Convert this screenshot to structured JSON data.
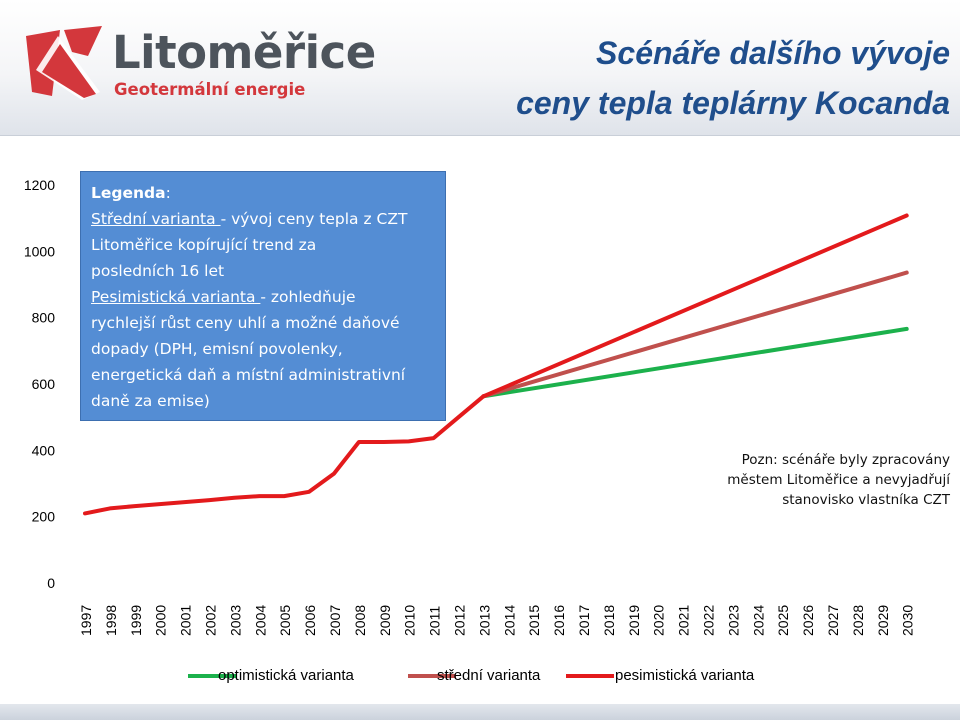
{
  "header": {
    "logo_name": "Litoměřice",
    "logo_tagline": "Geotermální energie",
    "title_line1": "Scénáře dalšího vývoje",
    "title_line2": "ceny tepla teplárny Kocanda"
  },
  "legend_box": {
    "heading": "Legenda",
    "heading_colon": ":",
    "middle_head": "Střední varianta ",
    "middle_text_1": "- vývoj ceny tepla z CZT",
    "middle_text_2": "Litoměřice kopírující trend za",
    "middle_text_3": "posledních 16 let",
    "pess_head": "Pesimistická varianta ",
    "pess_text_1": "- zohledňuje",
    "pess_text_2": "rychlejší růst ceny uhlí a možné daňové",
    "pess_text_3": "dopady (DPH, emisní povolenky,",
    "pess_text_4": "energetická daň a místní administrativní",
    "pess_text_5": "daně za emise)"
  },
  "note": {
    "line1": "Pozn: scénáře byly zpracovány",
    "line2": "městem Litoměřice a nevyjadřují",
    "line3": "stanovisko  vlastníka CZT"
  },
  "bottom_legend": {
    "optimistic": "optimistická varianta",
    "middle": "střední varianta",
    "pessimistic": "pesimistická varianta"
  },
  "colors": {
    "optimistic": "#1cb14c",
    "middle": "#c0504d",
    "pessimistic": "#e31a1c",
    "legend_box": "#548dd4",
    "title": "#1f4e8c",
    "logo_red": "#d3373c"
  },
  "chart_data": {
    "type": "line",
    "title": "Scénáře dalšího vývoje ceny tepla teplárny Kocanda",
    "xlabel": "",
    "ylabel": "",
    "ylim": [
      0,
      1200
    ],
    "yticks": [
      0,
      200,
      400,
      600,
      800,
      1000,
      1200
    ],
    "grid": false,
    "legend_position": "bottom",
    "x": [
      "1997",
      "1998",
      "1999",
      "2000",
      "2001",
      "2002",
      "2003",
      "2004",
      "2005",
      "2006",
      "2007",
      "2008",
      "2009",
      "2010",
      "2011",
      "2012",
      "2013",
      "2014",
      "2015",
      "2016",
      "2017",
      "2018",
      "2019",
      "2020",
      "2021",
      "2022",
      "2023",
      "2024",
      "2025",
      "2026",
      "2027",
      "2028",
      "2029",
      "2030"
    ],
    "historical": {
      "x": [
        "1997",
        "1998",
        "1999",
        "2000",
        "2001",
        "2002",
        "2003",
        "2004",
        "2005",
        "2006",
        "2007",
        "2008",
        "2009",
        "2010",
        "2011",
        "2012",
        "2013"
      ],
      "values": [
        210,
        225,
        232,
        238,
        244,
        250,
        257,
        262,
        262,
        275,
        330,
        425,
        425,
        427,
        437,
        500,
        563
      ]
    },
    "series": [
      {
        "name": "optimistická varianta",
        "x": [
          "2013",
          "2030"
        ],
        "values": [
          563,
          766
        ]
      },
      {
        "name": "střední varianta",
        "x": [
          "2013",
          "2030"
        ],
        "values": [
          563,
          936
        ]
      },
      {
        "name": "pesimistická varianta",
        "x": [
          "2013",
          "2030"
        ],
        "values": [
          563,
          1108
        ]
      }
    ]
  }
}
